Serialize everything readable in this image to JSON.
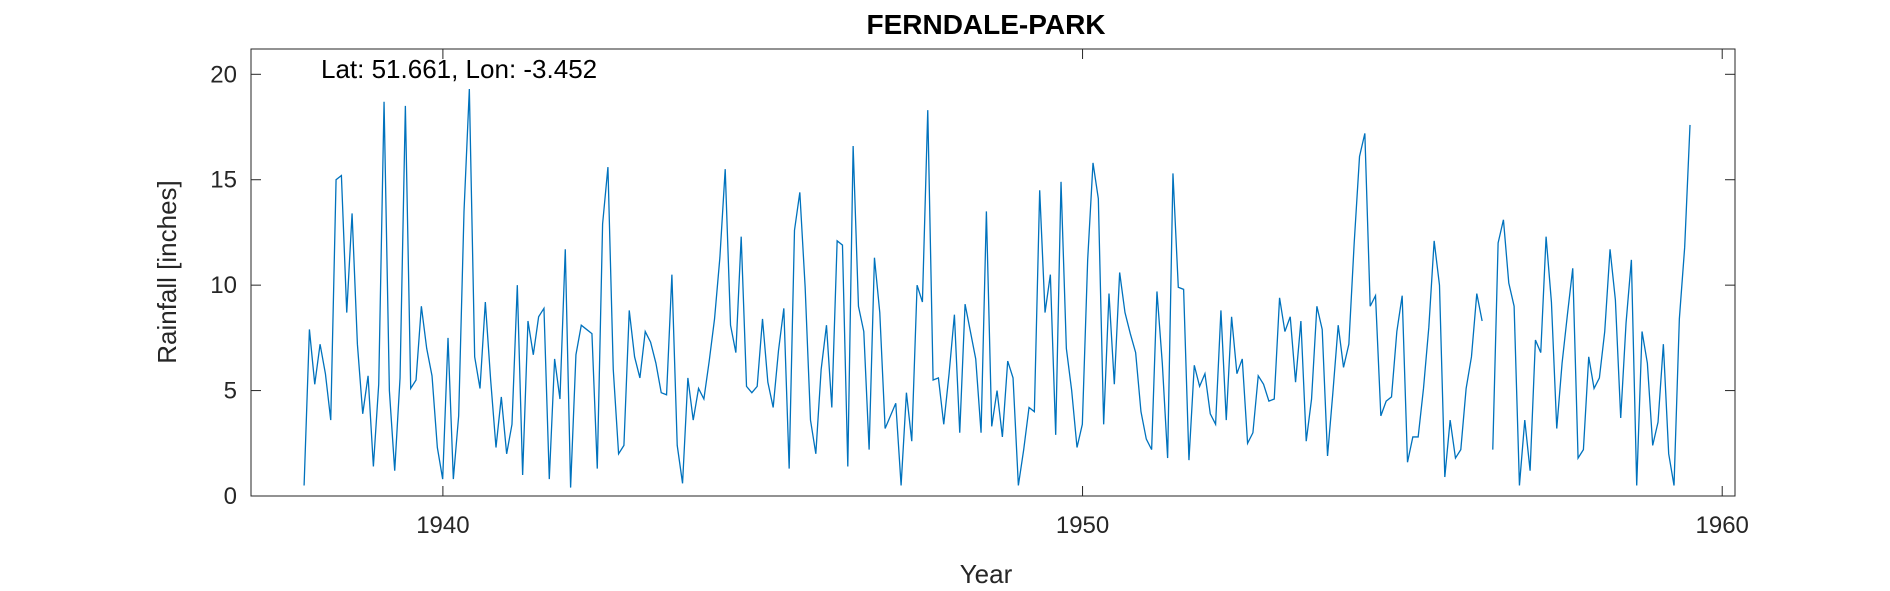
{
  "chart_data": {
    "type": "line",
    "title": "FERNDALE-PARK",
    "xlabel": "Year",
    "ylabel": "Rainfall [inches]",
    "annotation": "Lat: 51.661, Lon: -3.452",
    "xlim": [
      1937,
      1960.2
    ],
    "ylim": [
      0,
      21.2
    ],
    "xticks": [
      1940,
      1950,
      1960
    ],
    "yticks": [
      0,
      5,
      10,
      15,
      20
    ],
    "grid": false,
    "colors": {
      "series": "#0072BD",
      "axis": "#262626"
    },
    "series": [
      {
        "start_year": 1937.83,
        "step_months": 1,
        "values": [
          0.5,
          7.9,
          5.3,
          7.2,
          5.8,
          3.6,
          15.0,
          15.2,
          8.7,
          13.4,
          7.2,
          3.9,
          5.7,
          1.4,
          5.3,
          18.7,
          5.0,
          1.2,
          5.6,
          18.5,
          5.1,
          5.5,
          9.0,
          7.0,
          5.7,
          2.3,
          0.8,
          7.5,
          0.8,
          3.8,
          13.5,
          19.3,
          6.6,
          5.1,
          9.2,
          5.5,
          2.3,
          4.7,
          2.0,
          3.4,
          10.0,
          1.0,
          8.3,
          6.7,
          8.5,
          8.9,
          0.8,
          6.5,
          4.6,
          11.7,
          0.4,
          6.7,
          8.1,
          7.9,
          7.7,
          1.3,
          12.9,
          15.6,
          6.0,
          2.0,
          2.4,
          8.8,
          6.6,
          5.6,
          7.8,
          7.3,
          6.3,
          4.9,
          4.8,
          10.5,
          2.4,
          0.6,
          5.6,
          3.6,
          5.1,
          4.6,
          6.4,
          8.4,
          11.3,
          15.5,
          8.1,
          6.8,
          12.3,
          5.2,
          4.9,
          5.2,
          8.4,
          5.4,
          4.2,
          6.9,
          8.9,
          1.3,
          12.6,
          14.4,
          9.9,
          3.6,
          2.0,
          6.0,
          8.1,
          4.2,
          12.1,
          11.9,
          1.4,
          16.6,
          9.0,
          7.8,
          2.2,
          11.3,
          8.7,
          3.2,
          3.8,
          4.4,
          0.5,
          4.9,
          2.6,
          10.0,
          9.2,
          18.3,
          5.5,
          5.6,
          3.4,
          5.8,
          8.6,
          3.0,
          9.1,
          7.8,
          6.5,
          3.0,
          13.5,
          3.3,
          5.0,
          2.8,
          6.4,
          5.6,
          0.5,
          2.2,
          4.2,
          4.0,
          14.5,
          8.7,
          10.5,
          2.9,
          14.9,
          7.0,
          5.0,
          2.3,
          3.4,
          11.2,
          15.8,
          14.1,
          3.4,
          9.6,
          5.3,
          10.6,
          8.7,
          7.7,
          6.8,
          4.0,
          2.7,
          2.2,
          9.7,
          6.3,
          1.8,
          15.3,
          9.9,
          9.8,
          1.7,
          6.2,
          5.2,
          5.8,
          3.9,
          3.4,
          8.8,
          3.6,
          8.5,
          5.8,
          6.5,
          2.5,
          3.0,
          5.7,
          5.3,
          4.5,
          4.6,
          9.4,
          7.8,
          8.5,
          5.4,
          8.3,
          2.6,
          4.6,
          9.0,
          7.9,
          1.9,
          4.9,
          8.1,
          6.1,
          7.2,
          12.0,
          16.1,
          17.2,
          9.0,
          9.5,
          3.8,
          4.5,
          4.7,
          7.8,
          9.5,
          1.6,
          2.8,
          2.8,
          5.1,
          8.0,
          12.1,
          10.0,
          0.9,
          3.6,
          1.8,
          2.2,
          5.1,
          6.6,
          9.6,
          8.3,
          null,
          2.2,
          12.0,
          13.1,
          10.1,
          9.0,
          0.5,
          3.6,
          1.2,
          7.4,
          6.8,
          12.3,
          9.2,
          3.2,
          6.3,
          8.6,
          10.8,
          1.8,
          2.2,
          6.6,
          5.1,
          5.6,
          7.8,
          11.7,
          9.3,
          3.7,
          8.2,
          11.2,
          0.5,
          7.8,
          6.3,
          2.4,
          3.5,
          7.2,
          2.0,
          0.5,
          8.4,
          11.8,
          17.6
        ]
      }
    ]
  }
}
